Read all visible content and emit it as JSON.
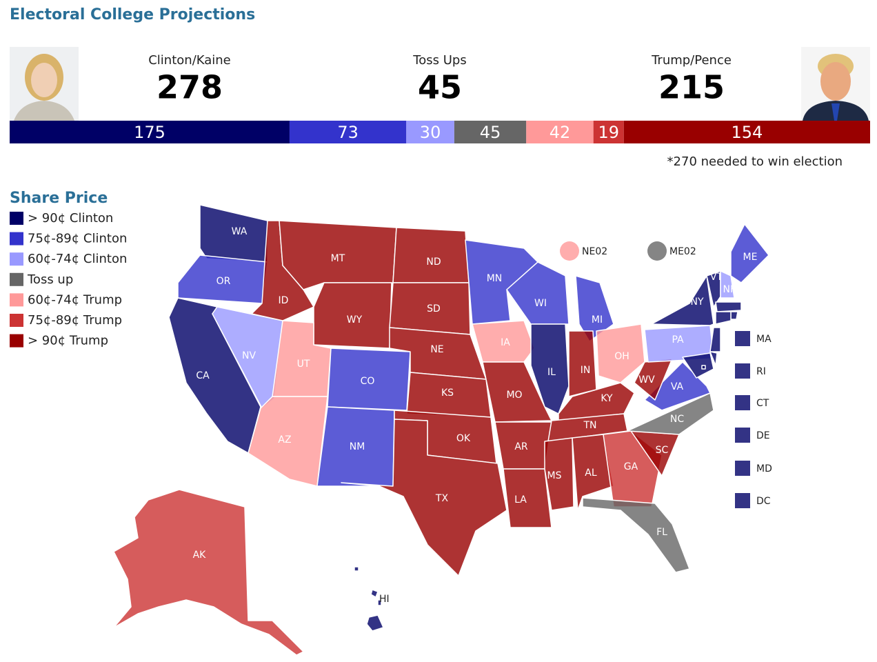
{
  "header": {
    "title": "Electoral College Projections"
  },
  "candidates": [
    {
      "name": "Clinton/Kaine",
      "total": 278
    },
    {
      "name": "Toss Ups",
      "total": 45
    },
    {
      "name": "Trump/Pence",
      "total": 215
    }
  ],
  "bar": [
    175,
    73,
    30,
    45,
    42,
    19,
    154
  ],
  "note": "*270 needed to win election",
  "legend": {
    "title": "Share Price",
    "items": [
      {
        "label": "> 90¢ Clinton",
        "color": "#000066"
      },
      {
        "label": "75¢-89¢ Clinton",
        "color": "#3333cc"
      },
      {
        "label": "60¢-74¢ Clinton",
        "color": "#9999ff"
      },
      {
        "label": "Toss up",
        "color": "#666666"
      },
      {
        "label": "60¢-74¢ Trump",
        "color": "#ff9999"
      },
      {
        "label": "75¢-89¢ Trump",
        "color": "#cc3333"
      },
      {
        "label": "> 90¢ Trump",
        "color": "#990000"
      }
    ]
  },
  "states": [
    {
      "abbr": "WA",
      "tier": 0
    },
    {
      "abbr": "OR",
      "tier": 1
    },
    {
      "abbr": "CA",
      "tier": 0
    },
    {
      "abbr": "NV",
      "tier": 2
    },
    {
      "abbr": "ID",
      "tier": 6
    },
    {
      "abbr": "MT",
      "tier": 6
    },
    {
      "abbr": "WY",
      "tier": 6
    },
    {
      "abbr": "UT",
      "tier": 4
    },
    {
      "abbr": "AZ",
      "tier": 4
    },
    {
      "abbr": "CO",
      "tier": 1
    },
    {
      "abbr": "NM",
      "tier": 1
    },
    {
      "abbr": "ND",
      "tier": 6
    },
    {
      "abbr": "SD",
      "tier": 6
    },
    {
      "abbr": "NE",
      "tier": 6
    },
    {
      "abbr": "KS",
      "tier": 6
    },
    {
      "abbr": "OK",
      "tier": 6
    },
    {
      "abbr": "TX",
      "tier": 6
    },
    {
      "abbr": "MN",
      "tier": 1
    },
    {
      "abbr": "IA",
      "tier": 4
    },
    {
      "abbr": "MO",
      "tier": 6
    },
    {
      "abbr": "AR",
      "tier": 6
    },
    {
      "abbr": "LA",
      "tier": 6
    },
    {
      "abbr": "WI",
      "tier": 1
    },
    {
      "abbr": "IL",
      "tier": 0
    },
    {
      "abbr": "MI",
      "tier": 1
    },
    {
      "abbr": "IN",
      "tier": 6
    },
    {
      "abbr": "OH",
      "tier": 4
    },
    {
      "abbr": "KY",
      "tier": 6
    },
    {
      "abbr": "TN",
      "tier": 6
    },
    {
      "abbr": "MS",
      "tier": 6
    },
    {
      "abbr": "AL",
      "tier": 6
    },
    {
      "abbr": "GA",
      "tier": 5
    },
    {
      "abbr": "FL",
      "tier": 3
    },
    {
      "abbr": "SC",
      "tier": 6
    },
    {
      "abbr": "NC",
      "tier": 3
    },
    {
      "abbr": "VA",
      "tier": 1
    },
    {
      "abbr": "WV",
      "tier": 6
    },
    {
      "abbr": "PA",
      "tier": 2
    },
    {
      "abbr": "NY",
      "tier": 0
    },
    {
      "abbr": "VT",
      "tier": 0
    },
    {
      "abbr": "NH",
      "tier": 2
    },
    {
      "abbr": "ME",
      "tier": 1
    },
    {
      "abbr": "MA",
      "tier": 0
    },
    {
      "abbr": "RI",
      "tier": 0
    },
    {
      "abbr": "CT",
      "tier": 0
    },
    {
      "abbr": null,
      "tier": 0
    },
    {
      "abbr": "DE",
      "tier": 0
    },
    {
      "abbr": "MD",
      "tier": 0
    },
    {
      "abbr": "DC",
      "tier": 0
    },
    {
      "abbr": "AK",
      "tier": 5
    },
    {
      "abbr": "HI",
      "tier": 0
    },
    {
      "abbr": "NE02",
      "tier": 4
    },
    {
      "abbr": "ME02",
      "tier": 3
    }
  ]
}
